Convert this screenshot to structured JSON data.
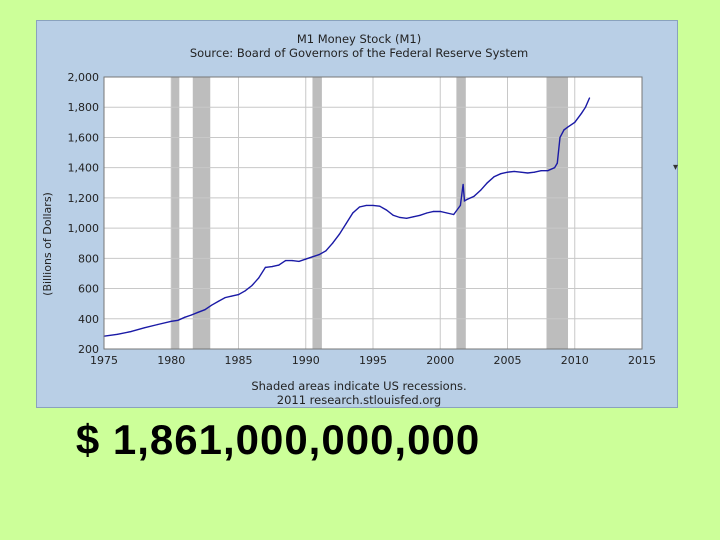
{
  "colors": {
    "page_background": "#ccff99",
    "panel_background": "#b9cfe6",
    "plot_background": "#ffffff",
    "recession_band": "#bdbdbd",
    "series_line": "#1a1aa6"
  },
  "chart_data": {
    "type": "line",
    "title": "M1 Money Stock (M1)",
    "subtitle": "Source: Board of Governors of the Federal Reserve System",
    "ylabel": "(Billions of Dollars)",
    "xlabel": "",
    "footnote_1": "Shaded areas indicate US recessions.",
    "footnote_2": "2011 research.stlouisfed.org",
    "xlim": [
      1975,
      2015
    ],
    "ylim": [
      200,
      2000
    ],
    "x_ticks": [
      "1975",
      "1980",
      "1985",
      "1990",
      "1995",
      "2000",
      "2005",
      "2010",
      "2015"
    ],
    "y_ticks": [
      "200",
      "400",
      "600",
      "800",
      "1,000",
      "1,200",
      "1,400",
      "1,600",
      "1,800",
      "2,000"
    ],
    "grid": true,
    "legend": "none",
    "recessions": [
      [
        1980.0,
        1980.6
      ],
      [
        1981.6,
        1982.9
      ],
      [
        1990.5,
        1991.2
      ],
      [
        2001.2,
        2001.9
      ],
      [
        2007.9,
        2009.5
      ]
    ],
    "series": [
      {
        "x": [
          1975.0,
          1976.0,
          1977.0,
          1978.0,
          1979.0,
          1980.0,
          1980.5,
          1981.0,
          1981.5,
          1982.0,
          1982.5,
          1983.0,
          1983.5,
          1984.0,
          1984.5,
          1985.0,
          1985.5,
          1986.0,
          1986.5,
          1987.0,
          1987.5,
          1988.0,
          1988.5,
          1989.0,
          1989.5,
          1990.0,
          1990.5,
          1991.0,
          1991.5,
          1992.0,
          1992.5,
          1993.0,
          1993.5,
          1994.0,
          1994.5,
          1995.0,
          1995.5,
          1996.0,
          1996.5,
          1997.0,
          1997.5,
          1998.0,
          1998.5,
          1999.0,
          1999.5,
          2000.0,
          2000.5,
          2001.0,
          2001.5,
          2001.7,
          2001.8,
          2002.0,
          2002.5,
          2003.0,
          2003.5,
          2004.0,
          2004.5,
          2005.0,
          2005.5,
          2006.0,
          2006.5,
          2007.0,
          2007.5,
          2008.0,
          2008.5,
          2008.7,
          2008.9,
          2009.2,
          2009.5,
          2010.0,
          2010.5,
          2010.8,
          2011.1
        ],
        "values": [
          285,
          297,
          315,
          340,
          362,
          383,
          390,
          410,
          425,
          443,
          460,
          490,
          515,
          540,
          550,
          560,
          585,
          620,
          670,
          740,
          745,
          755,
          785,
          785,
          780,
          795,
          810,
          825,
          850,
          900,
          960,
          1030,
          1100,
          1140,
          1150,
          1150,
          1145,
          1120,
          1085,
          1070,
          1065,
          1075,
          1085,
          1100,
          1110,
          1110,
          1100,
          1090,
          1150,
          1290,
          1180,
          1190,
          1210,
          1250,
          1300,
          1340,
          1360,
          1370,
          1375,
          1370,
          1365,
          1370,
          1380,
          1380,
          1400,
          1430,
          1600,
          1650,
          1670,
          1700,
          1760,
          1800,
          1861
        ]
      }
    ]
  },
  "main": {
    "amount": "$ 1,861,000,000,000"
  }
}
